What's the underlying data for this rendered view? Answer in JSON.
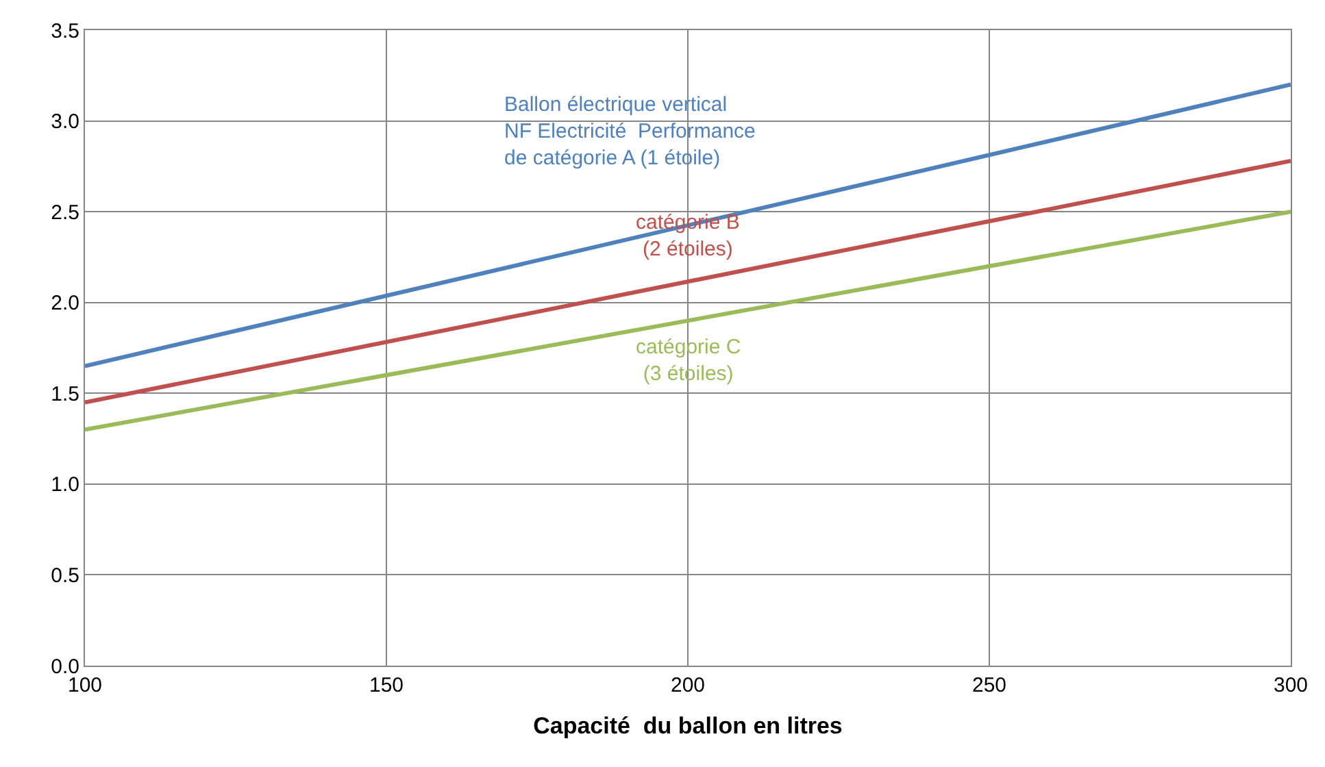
{
  "chart_data": {
    "type": "line",
    "xlabel": "Capacité  du ballon en litres",
    "x": [
      100,
      300
    ],
    "series": [
      {
        "name": "Ballon électrique vertical\nNF Electricité  Performance\nde catégorie A (1 étoile)",
        "color": "#4f81bd",
        "values": [
          1.65,
          3.2
        ]
      },
      {
        "name": "catégorie B\n(2 étoiles)",
        "color": "#c0504d",
        "values": [
          1.45,
          2.78
        ]
      },
      {
        "name": "catégorie C\n(3 étoiles)",
        "color": "#9bbb59",
        "values": [
          1.3,
          2.5
        ]
      }
    ],
    "xlim": [
      100,
      300
    ],
    "xticks": [
      100,
      150,
      200,
      250,
      300
    ],
    "ylim": [
      0,
      3.5
    ],
    "yticks": [
      {
        "value": 0,
        "label": "0.0"
      },
      {
        "value": 0.5,
        "label": "0.5"
      },
      {
        "value": 1,
        "label": "1.0"
      },
      {
        "value": 1.5,
        "label": "1.5"
      },
      {
        "value": 2,
        "label": "2.0"
      },
      {
        "value": 2.5,
        "label": "2.5"
      },
      {
        "value": 3,
        "label": "3.0"
      },
      {
        "value": 3.5,
        "label": "3.5"
      }
    ],
    "grid": true,
    "legend": false,
    "marker": "none",
    "line_style": "solid"
  }
}
